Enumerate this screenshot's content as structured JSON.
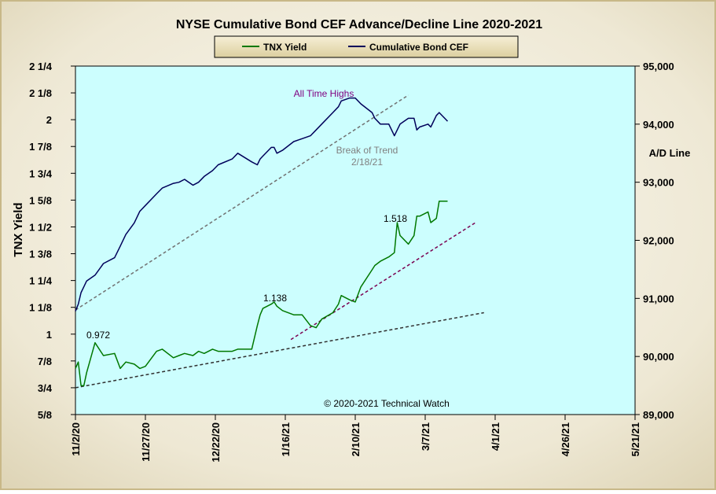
{
  "chart_data": {
    "type": "line",
    "title": "NYSE Cumulative  Bond CEF Advance/Decline  Line 2020-2021",
    "copyright": "© 2020-2021  Technical Watch",
    "ylabel_left": "TNX Yield",
    "ylabel_right": "A/D Line",
    "legend": {
      "position": "top-center",
      "items": [
        {
          "name": "TNX Yield",
          "color": "#007800"
        },
        {
          "name": "Cumulative Bond CEF",
          "color": "#00005a"
        }
      ]
    },
    "x_ticks": [
      "11/2/20",
      "11/27/20",
      "12/22/20",
      "1/16/21",
      "2/10/21",
      "3/7/21",
      "4/1/21",
      "4/26/21",
      "5/21/21"
    ],
    "x_range_days": [
      0,
      200
    ],
    "y_left": {
      "ticks": [
        "5/8",
        "3/4",
        "7/8",
        "1",
        "1 1/8",
        "1 1/4",
        "1 3/8",
        "1 1/2",
        "1 5/8",
        "1 3/4",
        "1 7/8",
        "2",
        "2 1/8",
        "2 1/4"
      ],
      "range": [
        0.625,
        2.25
      ]
    },
    "y_right": {
      "ticks": [
        "89,000",
        "90,000",
        "91,000",
        "92,000",
        "93,000",
        "94,000",
        "95,000"
      ],
      "range": [
        89000,
        95000
      ]
    },
    "series": [
      {
        "name": "TNX Yield",
        "color": "#007800",
        "axis": "left",
        "x": [
          "11/2/20",
          "11/3/20",
          "11/4/20",
          "11/5/20",
          "11/6/20",
          "11/9/20",
          "11/12/20",
          "11/16/20",
          "11/18/20",
          "11/20/20",
          "11/23/20",
          "11/25/20",
          "11/27/20",
          "12/1/20",
          "12/3/20",
          "12/7/20",
          "12/9/20",
          "12/11/20",
          "12/14/20",
          "12/16/20",
          "12/18/20",
          "12/21/20",
          "12/23/20",
          "12/28/20",
          "12/30/20",
          "1/4/21",
          "1/6/21",
          "1/7/21",
          "1/8/21",
          "1/11/21",
          "1/12/21",
          "1/13/21",
          "1/15/21",
          "1/19/21",
          "1/22/21",
          "1/25/21",
          "1/27/21",
          "1/29/21",
          "2/2/21",
          "2/4/21",
          "2/5/21",
          "2/8/21",
          "2/10/21",
          "2/12/21",
          "2/16/21",
          "2/17/21",
          "2/19/21",
          "2/22/21",
          "2/24/21",
          "2/25/21",
          "2/26/21",
          "3/1/21",
          "3/3/21",
          "3/4/21",
          "3/5/21",
          "3/8/21",
          "3/9/21",
          "3/11/21",
          "3/12/21",
          "3/15/21"
        ],
        "values": [
          0.84,
          0.87,
          0.76,
          0.76,
          0.82,
          0.96,
          0.9,
          0.91,
          0.84,
          0.87,
          0.86,
          0.84,
          0.85,
          0.92,
          0.93,
          0.89,
          0.9,
          0.91,
          0.9,
          0.92,
          0.91,
          0.93,
          0.92,
          0.92,
          0.93,
          0.93,
          1.04,
          1.09,
          1.12,
          1.14,
          1.15,
          1.13,
          1.11,
          1.09,
          1.09,
          1.04,
          1.03,
          1.07,
          1.1,
          1.14,
          1.18,
          1.16,
          1.15,
          1.22,
          1.3,
          1.32,
          1.34,
          1.36,
          1.38,
          1.52,
          1.46,
          1.42,
          1.46,
          1.55,
          1.55,
          1.57,
          1.52,
          1.54,
          1.62,
          1.62
        ]
      },
      {
        "name": "Cumulative Bond CEF",
        "color": "#00005a",
        "axis": "right",
        "x": [
          "11/2/20",
          "11/3/20",
          "11/4/20",
          "11/5/20",
          "11/6/20",
          "11/9/20",
          "11/12/20",
          "11/16/20",
          "11/18/20",
          "11/20/20",
          "11/23/20",
          "11/25/20",
          "11/27/20",
          "12/1/20",
          "12/3/20",
          "12/7/20",
          "12/9/20",
          "12/11/20",
          "12/14/20",
          "12/16/20",
          "12/18/20",
          "12/21/20",
          "12/23/20",
          "12/28/20",
          "12/30/20",
          "1/4/21",
          "1/6/21",
          "1/7/21",
          "1/8/21",
          "1/11/21",
          "1/12/21",
          "1/13/21",
          "1/15/21",
          "1/19/21",
          "1/22/21",
          "1/25/21",
          "1/27/21",
          "1/29/21",
          "2/2/21",
          "2/4/21",
          "2/5/21",
          "2/8/21",
          "2/10/21",
          "2/12/21",
          "2/16/21",
          "2/17/21",
          "2/19/21",
          "2/22/21",
          "2/24/21",
          "2/25/21",
          "2/26/21",
          "3/1/21",
          "3/3/21",
          "3/4/21",
          "3/5/21",
          "3/8/21",
          "3/9/21",
          "3/11/21",
          "3/12/21",
          "3/15/21"
        ],
        "values": [
          90.78,
          90.9,
          91.1,
          91.2,
          91.3,
          91.4,
          91.6,
          91.7,
          91.9,
          92.1,
          92.3,
          92.5,
          92.6,
          92.8,
          92.9,
          92.98,
          93.0,
          93.05,
          92.95,
          93.0,
          93.1,
          93.2,
          93.3,
          93.4,
          93.5,
          93.35,
          93.3,
          93.4,
          93.45,
          93.6,
          93.6,
          93.5,
          93.55,
          93.7,
          93.75,
          93.8,
          93.9,
          94.0,
          94.2,
          94.3,
          94.4,
          94.45,
          94.45,
          94.35,
          94.2,
          94.1,
          94.0,
          94.0,
          93.8,
          93.9,
          94.0,
          94.1,
          94.1,
          93.9,
          93.95,
          94.0,
          93.95,
          94.15,
          94.2,
          94.05
        ]
      }
    ],
    "annotations": [
      {
        "text": "All Time  Highs",
        "color": "#800080"
      },
      {
        "text": "Break of Trend",
        "color": "#808080"
      },
      {
        "text": "2/18/21",
        "color": "#808080"
      },
      {
        "text": "1.518",
        "color": "#000000"
      },
      {
        "text": "1.138",
        "color": "#000000"
      },
      {
        "text": "0.972",
        "color": "#000000"
      }
    ],
    "trendlines": [
      {
        "name": "cef-uptrend",
        "color": "#707070",
        "from": {
          "date": "11/2/20",
          "value": 90.8
        },
        "to": {
          "date": "3/1/21",
          "value": 94.5
        }
      },
      {
        "name": "tnx-long-trend",
        "color": "#303030",
        "from": {
          "date": "11/2/20",
          "value": 0.75
        },
        "to": {
          "date": "3/28/21",
          "value": 1.1
        }
      },
      {
        "name": "tnx-short-trend",
        "color": "#7a0050",
        "from": {
          "date": "1/18/21",
          "value": 0.975
        },
        "to": {
          "date": "3/25/21",
          "value": 1.52
        }
      }
    ],
    "colors": {
      "plot_background": "#ccfefe",
      "outer_background": "#f2eee0"
    }
  }
}
